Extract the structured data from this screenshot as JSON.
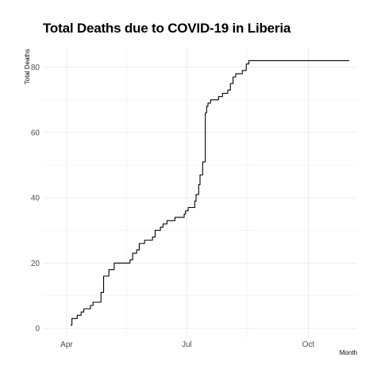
{
  "chart_data": {
    "type": "line",
    "title": "Total Deaths due to COVID-19 in Liberia",
    "xlabel": "Month",
    "ylabel": "Total Deaths",
    "x_axis": {
      "type": "date",
      "range": [
        "2020-03-14",
        "2020-11-07"
      ],
      "ticks": [
        {
          "date": "2020-04-01",
          "label": "Apr"
        },
        {
          "date": "2020-07-01",
          "label": "Jul"
        },
        {
          "date": "2020-10-01",
          "label": "Oct"
        }
      ]
    },
    "y_axis": {
      "range": [
        -3,
        86
      ],
      "ticks": [
        0,
        20,
        40,
        60,
        80
      ]
    },
    "grid": true,
    "series": [
      {
        "color": "#000000",
        "step": true,
        "points": [
          [
            "2020-04-04",
            1
          ],
          [
            "2020-04-05",
            3
          ],
          [
            "2020-04-09",
            4
          ],
          [
            "2020-04-12",
            5
          ],
          [
            "2020-04-14",
            6
          ],
          [
            "2020-04-19",
            7
          ],
          [
            "2020-04-21",
            8
          ],
          [
            "2020-04-27",
            11
          ],
          [
            "2020-04-29",
            16
          ],
          [
            "2020-05-03",
            18
          ],
          [
            "2020-05-07",
            20
          ],
          [
            "2020-05-19",
            21
          ],
          [
            "2020-05-21",
            23
          ],
          [
            "2020-05-24",
            24
          ],
          [
            "2020-05-26",
            26
          ],
          [
            "2020-05-30",
            27
          ],
          [
            "2020-06-05",
            28
          ],
          [
            "2020-06-07",
            30
          ],
          [
            "2020-06-11",
            31
          ],
          [
            "2020-06-13",
            32
          ],
          [
            "2020-06-16",
            33
          ],
          [
            "2020-06-22",
            34
          ],
          [
            "2020-06-29",
            35
          ],
          [
            "2020-06-30",
            36
          ],
          [
            "2020-07-02",
            37
          ],
          [
            "2020-07-07",
            39
          ],
          [
            "2020-07-08",
            41
          ],
          [
            "2020-07-10",
            44
          ],
          [
            "2020-07-11",
            47
          ],
          [
            "2020-07-13",
            51
          ],
          [
            "2020-07-15",
            66
          ],
          [
            "2020-07-16",
            68
          ],
          [
            "2020-07-17",
            69
          ],
          [
            "2020-07-19",
            70
          ],
          [
            "2020-07-25",
            71
          ],
          [
            "2020-07-28",
            72
          ],
          [
            "2020-08-01",
            73
          ],
          [
            "2020-08-03",
            75
          ],
          [
            "2020-08-05",
            77
          ],
          [
            "2020-08-07",
            78
          ],
          [
            "2020-08-12",
            79
          ],
          [
            "2020-08-15",
            81
          ],
          [
            "2020-08-17",
            82
          ],
          [
            "2020-11-01",
            82
          ]
        ]
      }
    ]
  }
}
